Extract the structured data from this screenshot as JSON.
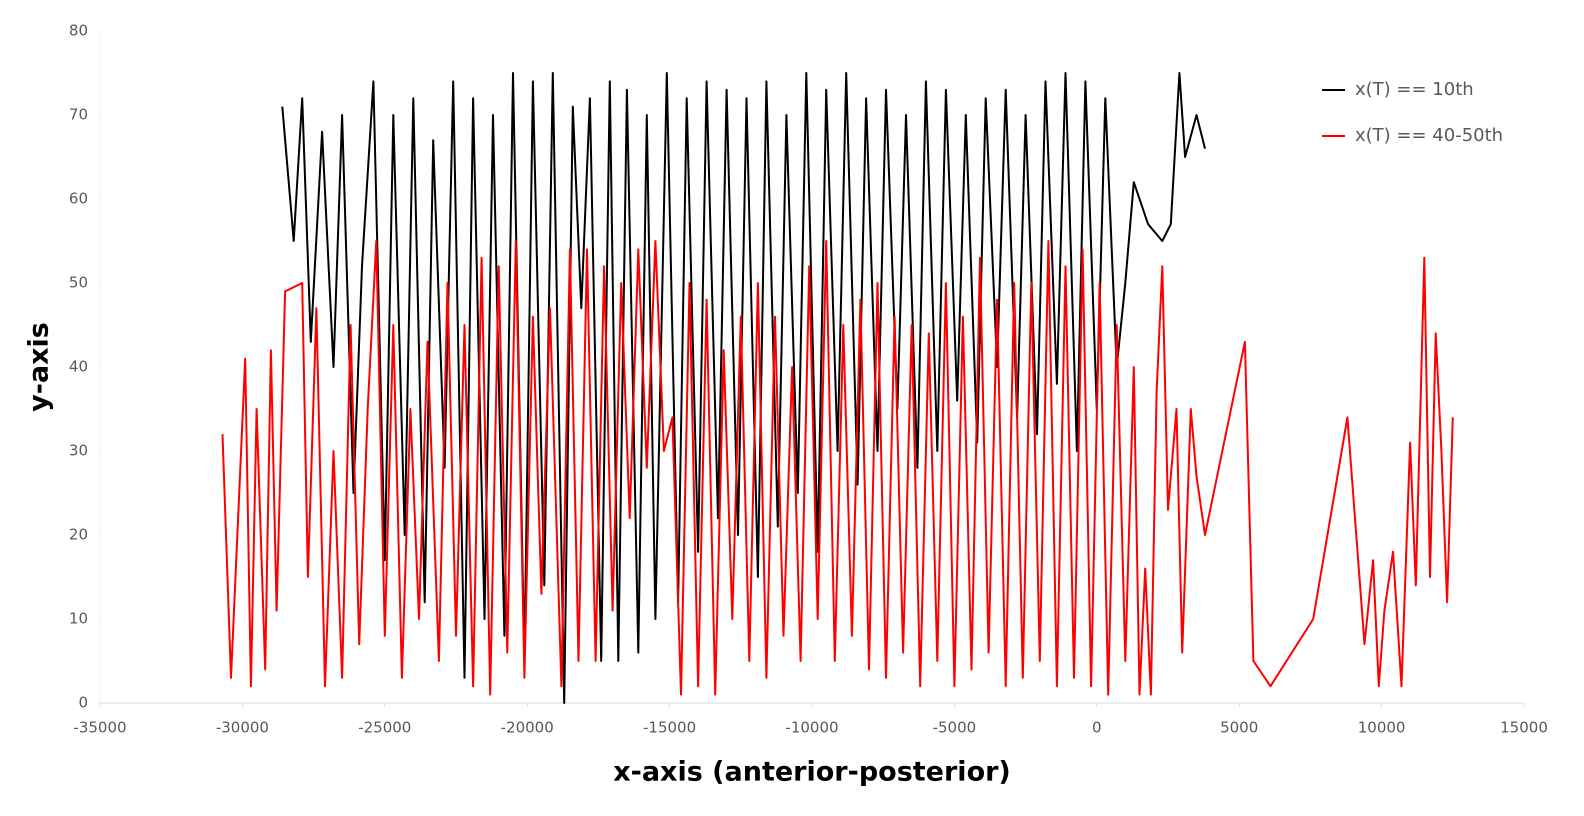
{
  "chart_data": {
    "type": "line",
    "xlabel": "x-axis (anterior-posterior)",
    "ylabel": "y-axis",
    "xlim": [
      -35000,
      15000
    ],
    "xticks": [
      -35000,
      -30000,
      -25000,
      -20000,
      -15000,
      -10000,
      -5000,
      0,
      5000,
      10000,
      15000
    ],
    "ylim": [
      0,
      80
    ],
    "yticks": [
      0,
      10,
      20,
      30,
      40,
      50,
      60,
      70,
      80
    ],
    "legend": "top-right",
    "series": [
      {
        "name": "x(T) == 10th",
        "color": "#000000",
        "x": [
          -28600,
          -28200,
          -27900,
          -27600,
          -27200,
          -26800,
          -26500,
          -26100,
          -25800,
          -25400,
          -25000,
          -24700,
          -24300,
          -24000,
          -23600,
          -23300,
          -22900,
          -22600,
          -22200,
          -21900,
          -21500,
          -21200,
          -20800,
          -20500,
          -20100,
          -19800,
          -19400,
          -19100,
          -18700,
          -18400,
          -18100,
          -17800,
          -17400,
          -17100,
          -16800,
          -16500,
          -16100,
          -15800,
          -15500,
          -15100,
          -14700,
          -14400,
          -14000,
          -13700,
          -13300,
          -13000,
          -12600,
          -12300,
          -11900,
          -11600,
          -11200,
          -10900,
          -10500,
          -10200,
          -9800,
          -9500,
          -9100,
          -8800,
          -8400,
          -8100,
          -7700,
          -7400,
          -7000,
          -6700,
          -6300,
          -6000,
          -5600,
          -5300,
          -4900,
          -4600,
          -4200,
          -3900,
          -3500,
          -3200,
          -2800,
          -2500,
          -2100,
          -1800,
          -1400,
          -1100,
          -700,
          -400,
          0,
          300,
          700,
          1000,
          1300,
          1800,
          2300,
          2600,
          2900,
          3100,
          3500,
          3800
        ],
        "values": [
          71,
          55,
          72,
          43,
          68,
          40,
          70,
          25,
          52,
          74,
          17,
          70,
          20,
          72,
          12,
          67,
          28,
          74,
          3,
          72,
          10,
          70,
          8,
          75,
          5,
          74,
          14,
          75,
          0,
          71,
          47,
          72,
          5,
          74,
          5,
          73,
          6,
          70,
          10,
          75,
          12,
          72,
          18,
          74,
          22,
          73,
          20,
          72,
          15,
          74,
          21,
          70,
          25,
          75,
          18,
          73,
          30,
          75,
          26,
          72,
          30,
          73,
          35,
          70,
          28,
          74,
          30,
          73,
          36,
          70,
          31,
          72,
          40,
          73,
          34,
          70,
          32,
          74,
          38,
          75,
          30,
          74,
          35,
          72,
          40,
          50,
          62,
          57,
          55,
          57,
          75,
          65,
          70,
          66
        ]
      },
      {
        "name": "x(T) == 40-50th",
        "color": "#ff0000",
        "x": [
          -30700,
          -30400,
          -29900,
          -29700,
          -29500,
          -29200,
          -29000,
          -28800,
          -28500,
          -27900,
          -27700,
          -27400,
          -27100,
          -26800,
          -26500,
          -26200,
          -25900,
          -25600,
          -25300,
          -25000,
          -24700,
          -24400,
          -24100,
          -23800,
          -23500,
          -23100,
          -22800,
          -22500,
          -22200,
          -21900,
          -21600,
          -21300,
          -21000,
          -20700,
          -20400,
          -20100,
          -19800,
          -19500,
          -19200,
          -18800,
          -18500,
          -18200,
          -17900,
          -17600,
          -17300,
          -17000,
          -16700,
          -16400,
          -16100,
          -15800,
          -15500,
          -15200,
          -14900,
          -14600,
          -14300,
          -14000,
          -13700,
          -13400,
          -13100,
          -12800,
          -12500,
          -12200,
          -11900,
          -11600,
          -11300,
          -11000,
          -10700,
          -10400,
          -10100,
          -9800,
          -9500,
          -9200,
          -8900,
          -8600,
          -8300,
          -8000,
          -7700,
          -7400,
          -7100,
          -6800,
          -6500,
          -6200,
          -5900,
          -5600,
          -5300,
          -5000,
          -4700,
          -4400,
          -4100,
          -3800,
          -3500,
          -3200,
          -2900,
          -2600,
          -2300,
          -2000,
          -1700,
          -1400,
          -1100,
          -800,
          -500,
          -200,
          100,
          400,
          700,
          1000,
          1300,
          1500,
          1700,
          1900,
          2100,
          2300,
          2500,
          2800,
          3000,
          3300,
          3500,
          3800,
          5200,
          5500,
          6100,
          7600,
          8800,
          9400,
          9700,
          9900,
          10100,
          10400,
          10700,
          11000,
          11200,
          11500,
          11700,
          11900,
          12100,
          12300,
          12500
        ],
        "values": [
          32,
          3,
          41,
          2,
          35,
          4,
          42,
          11,
          49,
          50,
          15,
          47,
          2,
          30,
          3,
          45,
          7,
          35,
          55,
          8,
          45,
          3,
          35,
          10,
          43,
          5,
          50,
          8,
          45,
          2,
          53,
          1,
          52,
          6,
          55,
          3,
          46,
          13,
          47,
          2,
          54,
          5,
          54,
          5,
          52,
          11,
          50,
          22,
          54,
          28,
          55,
          30,
          34,
          1,
          50,
          2,
          48,
          1,
          42,
          10,
          46,
          5,
          50,
          3,
          46,
          8,
          40,
          5,
          52,
          10,
          55,
          5,
          45,
          8,
          48,
          4,
          50,
          3,
          46,
          6,
          45,
          2,
          44,
          5,
          50,
          2,
          46,
          4,
          53,
          6,
          48,
          2,
          50,
          3,
          50,
          5,
          55,
          2,
          52,
          3,
          54,
          2,
          50,
          1,
          45,
          5,
          40,
          1,
          16,
          1,
          37,
          52,
          23,
          35,
          6,
          35,
          27,
          20,
          43,
          5,
          2,
          10,
          34,
          7,
          17,
          2,
          11,
          18,
          2,
          31,
          14,
          53,
          15,
          44,
          30,
          12,
          34
        ]
      }
    ]
  }
}
